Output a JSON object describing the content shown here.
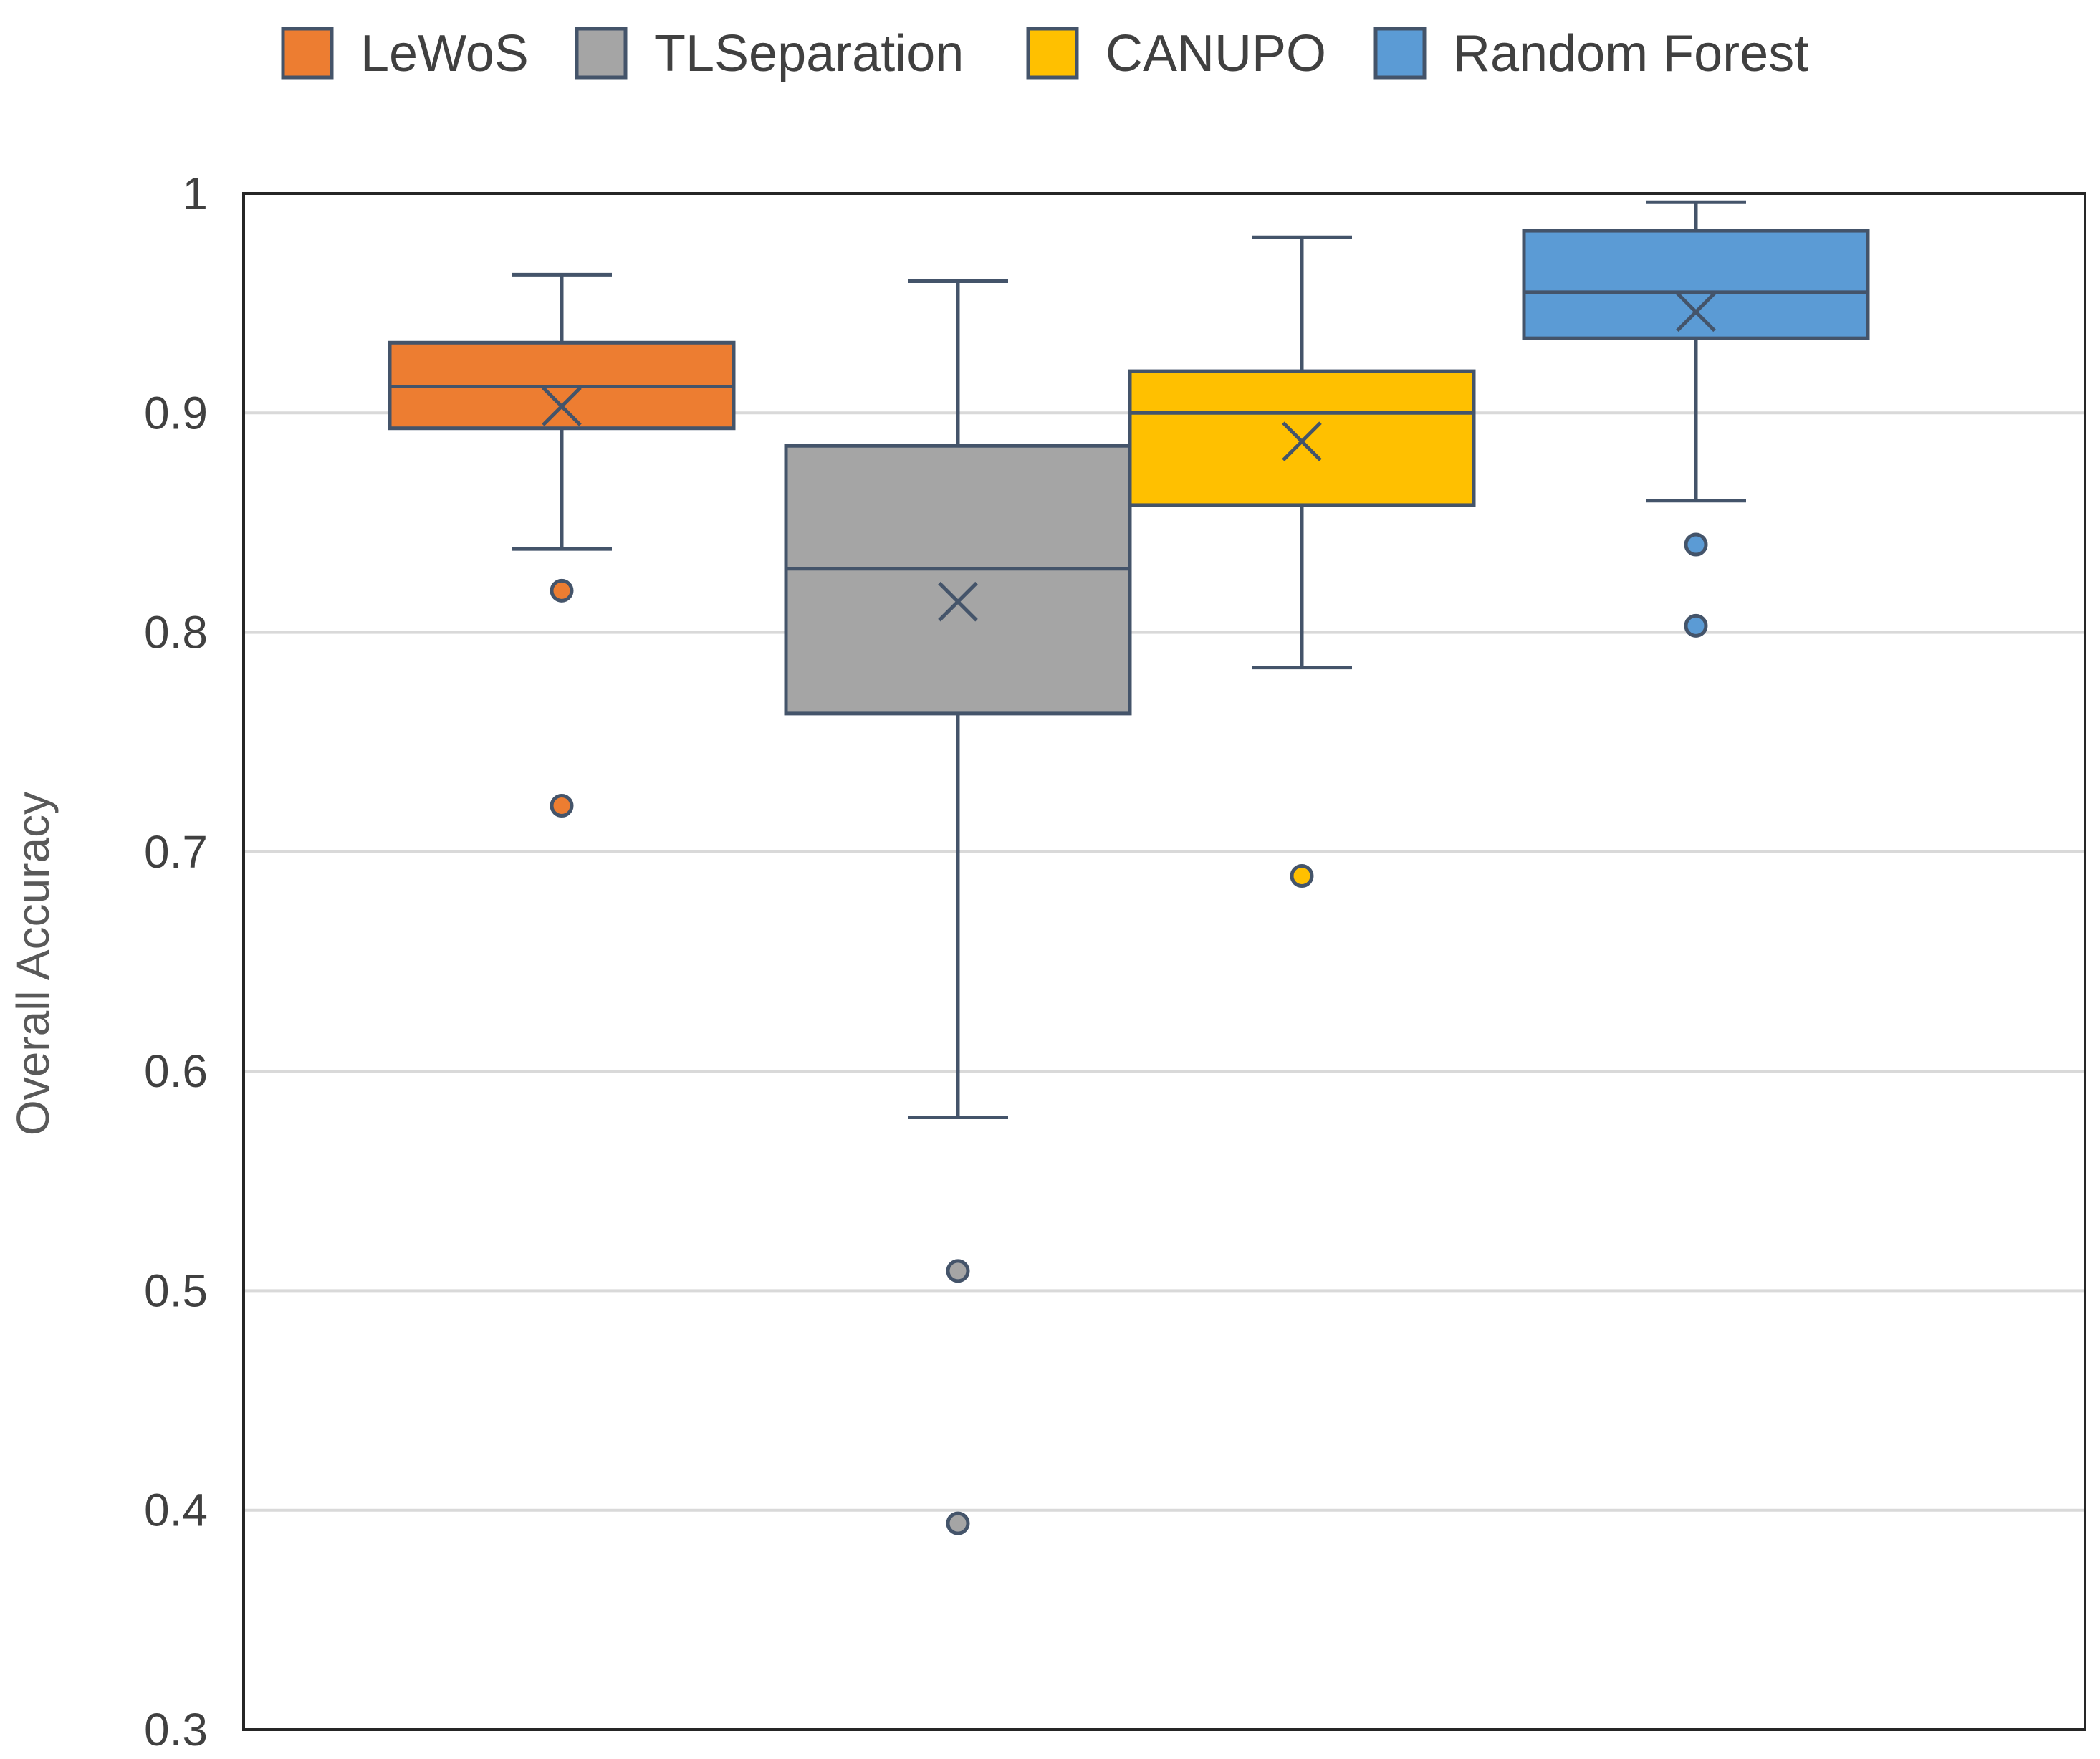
{
  "chart_data": {
    "type": "box",
    "title": "",
    "xlabel": "",
    "ylabel": "Overall Accuracy",
    "ylim": [
      0.3,
      1.0
    ],
    "yticks": [
      "0.3",
      "0.4",
      "0.5",
      "0.6",
      "0.7",
      "0.8",
      "0.9",
      "1"
    ],
    "grid": true,
    "legend_position": "top",
    "series": [
      {
        "name": "LeWoS",
        "color": "#ED7D31",
        "min": 0.838,
        "q1": 0.893,
        "median": 0.912,
        "q3": 0.932,
        "max": 0.963,
        "mean": 0.903,
        "outliers": [
          0.819,
          0.721
        ]
      },
      {
        "name": "TLSeparation",
        "color": "#A5A5A5",
        "min": 0.579,
        "q1": 0.763,
        "median": 0.829,
        "q3": 0.885,
        "max": 0.96,
        "mean": 0.814,
        "outliers": [
          0.509,
          0.394
        ]
      },
      {
        "name": "CANUPO",
        "color": "#FFC000",
        "min": 0.784,
        "q1": 0.858,
        "median": 0.9,
        "q3": 0.919,
        "max": 0.98,
        "mean": 0.887,
        "outliers": [
          0.689
        ]
      },
      {
        "name": "Random Forest",
        "color": "#5B9BD5",
        "min": 0.86,
        "q1": 0.934,
        "median": 0.955,
        "q3": 0.983,
        "max": 0.996,
        "mean": 0.946,
        "outliers": [
          0.84,
          0.803
        ]
      }
    ],
    "stroke_color": "#44546A",
    "gridline_color": "#D9D9D9"
  }
}
